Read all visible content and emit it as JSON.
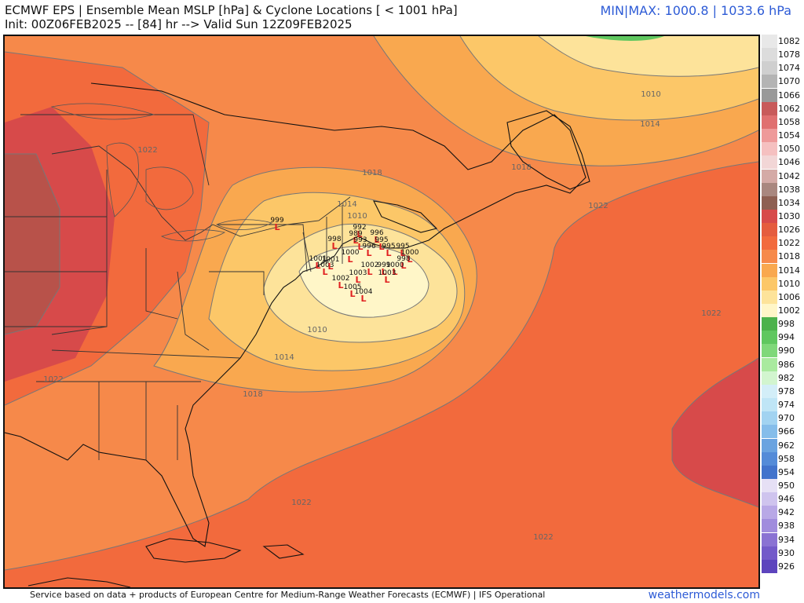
{
  "header": {
    "title_line1": "ECMWF EPS | Ensemble Mean MSLP [hPa] & Cyclone Locations [ < 1001 hPa]",
    "title_line2": "Init: 00Z06FEB2025 -- [84] hr --> Valid Sun 12Z09FEB2025",
    "minmax": "MIN|MAX: 1000.8 | 1033.6 hPa"
  },
  "footer": {
    "source": "Service based on data + products of European Centre for Medium-Range Weather Forecasts (ECMWF) | IFS Operational",
    "credit": "weathermodels.com"
  },
  "colors": {
    "accent": "#2d5bd6",
    "cyclone_marker": "#e02020"
  },
  "colorbar": [
    {
      "label": "1082",
      "color": "#e8e8e8"
    },
    {
      "label": "1078",
      "color": "#dcdcdc"
    },
    {
      "label": "1074",
      "color": "#cfcfcf"
    },
    {
      "label": "1070",
      "color": "#b4b4b4"
    },
    {
      "label": "1066",
      "color": "#999999"
    },
    {
      "label": "1062",
      "color": "#c85a5a"
    },
    {
      "label": "1058",
      "color": "#e07070"
    },
    {
      "label": "1054",
      "color": "#ee9a9a"
    },
    {
      "label": "1050",
      "color": "#f5c0c0"
    },
    {
      "label": "1046",
      "color": "#f2d6d6"
    },
    {
      "label": "1042",
      "color": "#d4aaa6"
    },
    {
      "label": "1038",
      "color": "#a9877f"
    },
    {
      "label": "1034",
      "color": "#8e5f52"
    },
    {
      "label": "1030",
      "color": "#d74a4a"
    },
    {
      "label": "1026",
      "color": "#e55c3e"
    },
    {
      "label": "1022",
      "color": "#f26a3d"
    },
    {
      "label": "1018",
      "color": "#f6894a"
    },
    {
      "label": "1014",
      "color": "#f9a84f"
    },
    {
      "label": "1010",
      "color": "#fcc768"
    },
    {
      "label": "1006",
      "color": "#fde39a"
    },
    {
      "label": "1002",
      "color": "#fff6c8"
    },
    {
      "label": "998",
      "color": "#4cb24c"
    },
    {
      "label": "994",
      "color": "#5fc75f"
    },
    {
      "label": "990",
      "color": "#7fd87a"
    },
    {
      "label": "986",
      "color": "#a9ea9f"
    },
    {
      "label": "982",
      "color": "#d2f5cf"
    },
    {
      "label": "978",
      "color": "#d3eef8"
    },
    {
      "label": "974",
      "color": "#bfe5f6"
    },
    {
      "label": "970",
      "color": "#a2d3f1"
    },
    {
      "label": "966",
      "color": "#85bdea"
    },
    {
      "label": "962",
      "color": "#6aa3e0"
    },
    {
      "label": "958",
      "color": "#548bd8"
    },
    {
      "label": "954",
      "color": "#4273cc"
    },
    {
      "label": "950",
      "color": "#e6e0f5"
    },
    {
      "label": "946",
      "color": "#cfc4ee"
    },
    {
      "label": "942",
      "color": "#b8a8e6"
    },
    {
      "label": "938",
      "color": "#a08cdd"
    },
    {
      "label": "934",
      "color": "#8a72d3"
    },
    {
      "label": "930",
      "color": "#735ac9"
    },
    {
      "label": "926",
      "color": "#5d44bd"
    }
  ],
  "isobar_labels": [
    {
      "text": "1010"
    },
    {
      "text": "1014"
    },
    {
      "text": "1022"
    },
    {
      "text": "1018"
    },
    {
      "text": "1022"
    },
    {
      "text": "1018"
    },
    {
      "text": "1014"
    },
    {
      "text": "1010"
    },
    {
      "text": "1010"
    },
    {
      "text": "1014"
    },
    {
      "text": "1018"
    },
    {
      "text": "1022"
    },
    {
      "text": "1022"
    },
    {
      "text": "1022"
    },
    {
      "text": "1022"
    }
  ],
  "cyclones": [
    {
      "value": "999"
    },
    {
      "value": "992"
    },
    {
      "value": "989"
    },
    {
      "value": "996"
    },
    {
      "value": "993"
    },
    {
      "value": "995"
    },
    {
      "value": "998"
    },
    {
      "value": "996"
    },
    {
      "value": "995"
    },
    {
      "value": "995"
    },
    {
      "value": "1000"
    },
    {
      "value": "998"
    },
    {
      "value": "1003"
    },
    {
      "value": "1002"
    },
    {
      "value": "999"
    },
    {
      "value": "1000"
    },
    {
      "value": "1003"
    },
    {
      "value": "1003"
    },
    {
      "value": "1005"
    },
    {
      "value": "1004"
    },
    {
      "value": "1002"
    },
    {
      "value": "1001"
    },
    {
      "value": "1000"
    },
    {
      "value": "1001"
    }
  ]
}
